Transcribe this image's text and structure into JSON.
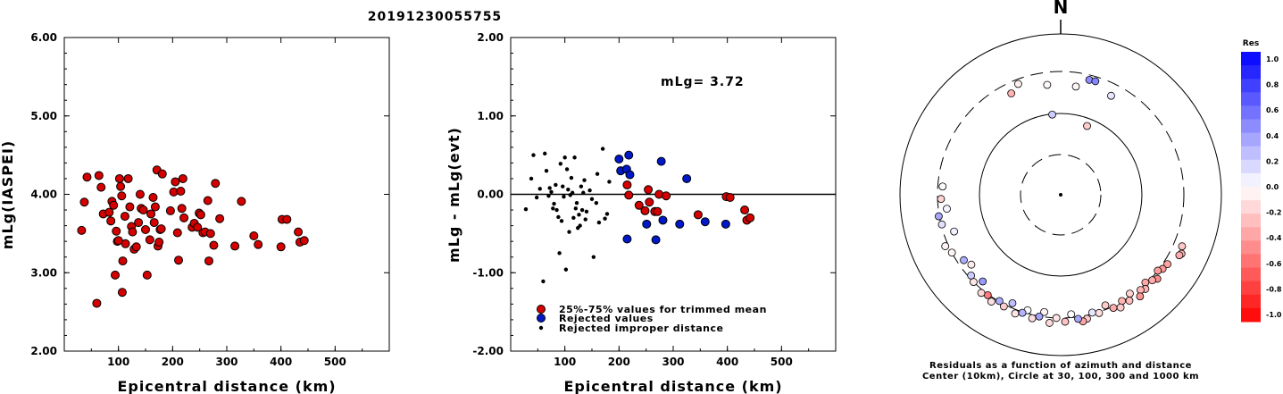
{
  "title": "20191230055755",
  "chart_data": [
    {
      "type": "scatter",
      "ylabel": "mLg(IASPEI)",
      "xlabel": "Epicentral distance (km)",
      "xlim": [
        0,
        600
      ],
      "ylim": [
        2.0,
        6.0
      ],
      "xticks": [
        "100",
        "200",
        "300",
        "400",
        "500"
      ],
      "yticks": [
        "2.00",
        "3.00",
        "4.00",
        "5.00",
        "6.00"
      ],
      "marker_color": "#d40000",
      "points": [
        [
          32,
          3.54
        ],
        [
          37,
          3.9
        ],
        [
          42,
          4.22
        ],
        [
          60,
          2.61
        ],
        [
          64,
          4.24
        ],
        [
          68,
          4.09
        ],
        [
          72,
          3.75
        ],
        [
          83,
          3.77
        ],
        [
          86,
          3.66
        ],
        [
          88,
          3.91
        ],
        [
          91,
          3.86
        ],
        [
          94,
          2.97
        ],
        [
          96,
          3.53
        ],
        [
          98,
          3.4
        ],
        [
          100,
          3.41
        ],
        [
          102,
          4.2
        ],
        [
          104,
          4.1
        ],
        [
          106,
          3.98
        ],
        [
          107,
          2.75
        ],
        [
          108,
          3.15
        ],
        [
          112,
          3.72
        ],
        [
          113,
          3.37
        ],
        [
          118,
          4.2
        ],
        [
          121,
          3.84
        ],
        [
          124,
          3.59
        ],
        [
          126,
          3.52
        ],
        [
          129,
          3.3
        ],
        [
          133,
          3.33
        ],
        [
          137,
          3.64
        ],
        [
          140,
          4.0
        ],
        [
          142,
          3.82
        ],
        [
          146,
          3.8
        ],
        [
          150,
          3.55
        ],
        [
          153,
          2.97
        ],
        [
          158,
          3.42
        ],
        [
          160,
          3.75
        ],
        [
          164,
          3.96
        ],
        [
          166,
          3.64
        ],
        [
          168,
          3.84
        ],
        [
          171,
          4.31
        ],
        [
          173,
          3.34
        ],
        [
          175,
          3.39
        ],
        [
          177,
          3.55
        ],
        [
          179,
          3.56
        ],
        [
          181,
          4.26
        ],
        [
          196,
          3.79
        ],
        [
          202,
          4.03
        ],
        [
          205,
          4.16
        ],
        [
          209,
          3.51
        ],
        [
          211,
          3.16
        ],
        [
          215,
          4.04
        ],
        [
          217,
          3.82
        ],
        [
          219,
          4.2
        ],
        [
          221,
          3.7
        ],
        [
          236,
          3.58
        ],
        [
          240,
          3.63
        ],
        [
          246,
          3.58
        ],
        [
          249,
          3.76
        ],
        [
          252,
          3.74
        ],
        [
          256,
          3.51
        ],
        [
          260,
          3.52
        ],
        [
          265,
          3.92
        ],
        [
          267,
          3.15
        ],
        [
          270,
          3.5
        ],
        [
          276,
          3.35
        ],
        [
          279,
          4.14
        ],
        [
          287,
          3.69
        ],
        [
          315,
          3.34
        ],
        [
          327,
          3.91
        ],
        [
          350,
          3.47
        ],
        [
          358,
          3.36
        ],
        [
          400,
          3.33
        ],
        [
          402,
          3.68
        ],
        [
          411,
          3.68
        ],
        [
          432,
          3.52
        ],
        [
          435,
          3.39
        ],
        [
          443,
          3.41
        ]
      ]
    },
    {
      "type": "scatter",
      "ylabel": "mLg - mLg(evt)",
      "xlabel": "Epicentral distance (km)",
      "xlim": [
        0,
        600
      ],
      "ylim": [
        -2.0,
        2.0
      ],
      "xticks": [
        "100",
        "200",
        "300",
        "400",
        "500"
      ],
      "yticks": [
        "-2.00",
        "-1.00",
        "0.00",
        "1.00",
        "2.00"
      ],
      "annotation": "mLg= 3.72",
      "legend": [
        {
          "label": "25%-75% values for trimmed mean",
          "color": "#d40000"
        },
        {
          "label": "Rejected values",
          "color": "#0018c8"
        },
        {
          "label": "Rejected improper distance",
          "color": "#000000"
        }
      ],
      "series": [
        {
          "name": "25%-75% values for trimmed mean",
          "color": "#d40000",
          "points": [
            [
              215,
              0.12
            ],
            [
              218,
              -0.01
            ],
            [
              237,
              -0.14
            ],
            [
              248,
              -0.21
            ],
            [
              254,
              0.06
            ],
            [
              256,
              -0.1
            ],
            [
              266,
              -0.22
            ],
            [
              271,
              -0.22
            ],
            [
              274,
              0.0
            ],
            [
              287,
              -0.02
            ],
            [
              346,
              -0.26
            ],
            [
              398,
              -0.03
            ],
            [
              405,
              -0.04
            ],
            [
              432,
              -0.2
            ],
            [
              436,
              -0.33
            ],
            [
              442,
              -0.3
            ]
          ]
        },
        {
          "name": "Rejected values",
          "color": "#0018c8",
          "points": [
            [
              200,
              0.45
            ],
            [
              203,
              0.3
            ],
            [
              214,
              0.32
            ],
            [
              218,
              0.5
            ],
            [
              220,
              0.25
            ],
            [
              215,
              -0.57
            ],
            [
              251,
              -0.38
            ],
            [
              268,
              -0.58
            ],
            [
              278,
              0.42
            ],
            [
              281,
              -0.33
            ],
            [
              312,
              -0.38
            ],
            [
              325,
              0.2
            ],
            [
              359,
              -0.35
            ],
            [
              397,
              -0.38
            ]
          ]
        },
        {
          "name": "Rejected improper distance",
          "color": "#000000",
          "points": [
            [
              28,
              -0.19
            ],
            [
              38,
              0.2
            ],
            [
              42,
              0.5
            ],
            [
              48,
              -0.04
            ],
            [
              54,
              0.07
            ],
            [
              60,
              -1.11
            ],
            [
              63,
              0.52
            ],
            [
              66,
              0.3
            ],
            [
              70,
              -0.02
            ],
            [
              72,
              0.08
            ],
            [
              75,
              0.03
            ],
            [
              78,
              -0.18
            ],
            [
              80,
              -0.12
            ],
            [
              83,
              0.12
            ],
            [
              85,
              -0.2
            ],
            [
              88,
              -0.29
            ],
            [
              90,
              -0.75
            ],
            [
              92,
              0.39
            ],
            [
              94,
              -0.34
            ],
            [
              96,
              0.1
            ],
            [
              98,
              -0.03
            ],
            [
              100,
              0.47
            ],
            [
              102,
              -0.96
            ],
            [
              104,
              0.32
            ],
            [
              106,
              0.06
            ],
            [
              108,
              -0.48
            ],
            [
              110,
              -0.01
            ],
            [
              112,
              0.21
            ],
            [
              114,
              0.02
            ],
            [
              116,
              -0.3
            ],
            [
              118,
              0.47
            ],
            [
              120,
              -0.18
            ],
            [
              122,
              -0.11
            ],
            [
              124,
              -0.43
            ],
            [
              126,
              -0.26
            ],
            [
              128,
              -0.4
            ],
            [
              130,
              0.1
            ],
            [
              132,
              -0.2
            ],
            [
              134,
              0.02
            ],
            [
              136,
              0.18
            ],
            [
              138,
              -0.32
            ],
            [
              140,
              -0.22
            ],
            [
              146,
              0.05
            ],
            [
              150,
              -0.06
            ],
            [
              153,
              -0.8
            ],
            [
              158,
              -0.11
            ],
            [
              160,
              0.26
            ],
            [
              163,
              -0.36
            ],
            [
              170,
              0.58
            ],
            [
              174,
              -0.31
            ],
            [
              178,
              -0.25
            ],
            [
              182,
              0.16
            ]
          ]
        }
      ]
    },
    {
      "type": "scatter",
      "subtype": "polar",
      "north_label": "N",
      "caption_line1": "Residuals as a function of azimuth and distance",
      "caption_line2": "Center (10km), Circle at 30, 100, 300 and 1000 km",
      "colorbar": {
        "title": "Res",
        "ticks": [
          "1.0",
          "0.8",
          "0.6",
          "0.4",
          "0.2",
          "0.0",
          "-0.2",
          "-0.4",
          "-0.6",
          "-0.8",
          "-1.0"
        ],
        "positive_color": "#0000ff",
        "negative_color": "#ff0000",
        "zero_color": "#ffffff"
      },
      "points": [
        {
          "az": 353,
          "dist": 216,
          "res": -0.02
        },
        {
          "az": 27,
          "dist": 218,
          "res": 0.1
        },
        {
          "az": 113,
          "dist": 396,
          "res": -0.22
        },
        {
          "az": 116,
          "dist": 430,
          "res": -0.3
        },
        {
          "az": 117,
          "dist": 413,
          "res": -0.33
        },
        {
          "az": 123,
          "dist": 342,
          "res": -0.36
        },
        {
          "az": 126,
          "dist": 328,
          "res": -0.4
        },
        {
          "az": 128,
          "dist": 300,
          "res": -0.38
        },
        {
          "az": 131,
          "dist": 350,
          "res": -0.44
        },
        {
          "az": 133,
          "dist": 320,
          "res": -0.33
        },
        {
          "az": 136,
          "dist": 290,
          "res": -0.35
        },
        {
          "az": 138,
          "dist": 335,
          "res": -0.3
        },
        {
          "az": 140,
          "dist": 310,
          "res": -0.29
        },
        {
          "az": 142,
          "dist": 360,
          "res": -0.42
        },
        {
          "az": 145,
          "dist": 280,
          "res": -0.18
        },
        {
          "az": 147,
          "dist": 330,
          "res": -0.25
        },
        {
          "az": 150,
          "dist": 295,
          "res": -0.3
        },
        {
          "az": 152,
          "dist": 345,
          "res": -0.2
        },
        {
          "az": 155,
          "dist": 315,
          "res": -0.33
        },
        {
          "az": 158,
          "dist": 270,
          "res": -0.2
        },
        {
          "az": 162,
          "dist": 310,
          "res": -0.12
        },
        {
          "az": 165,
          "dist": 290,
          "res": 0.1
        },
        {
          "az": 168,
          "dist": 335,
          "res": -0.21
        },
        {
          "az": 170,
          "dist": 355,
          "res": -0.35
        },
        {
          "az": 172,
          "dist": 320,
          "res": 0.35
        },
        {
          "az": 175,
          "dist": 275,
          "res": 0.0
        },
        {
          "az": 178,
          "dist": 338,
          "res": -0.24
        },
        {
          "az": 182,
          "dist": 300,
          "res": -0.1
        },
        {
          "az": 185,
          "dist": 356,
          "res": -0.15
        },
        {
          "az": 188,
          "dist": 264,
          "res": -0.05
        },
        {
          "az": 190,
          "dist": 303,
          "res": 0.36
        },
        {
          "az": 193,
          "dist": 335,
          "res": -0.13
        },
        {
          "az": 196,
          "dist": 276,
          "res": -0.02
        },
        {
          "az": 198,
          "dist": 308,
          "res": 0.3
        },
        {
          "az": 201,
          "dist": 340,
          "res": -0.1
        },
        {
          "az": 204,
          "dist": 266,
          "res": 0.25
        },
        {
          "az": 207,
          "dist": 320,
          "res": -0.2
        },
        {
          "az": 210,
          "dist": 295,
          "res": 0.32
        },
        {
          "az": 213,
          "dist": 342,
          "res": -0.12
        },
        {
          "az": 216,
          "dist": 308,
          "res": -0.52
        },
        {
          "az": 219,
          "dist": 330,
          "res": -0.15
        },
        {
          "az": 222,
          "dist": 252,
          "res": 0.4
        },
        {
          "az": 225,
          "dist": 300,
          "res": -0.1
        },
        {
          "az": 228,
          "dist": 280,
          "res": 0.2
        },
        {
          "az": 232,
          "dist": 232,
          "res": -0.08
        },
        {
          "az": 236,
          "dist": 254,
          "res": 0.32
        },
        {
          "az": 242,
          "dist": 300,
          "res": -0.04
        },
        {
          "az": 246,
          "dist": 332,
          "res": -0.05
        },
        {
          "az": 251,
          "dist": 228,
          "res": 0.06
        },
        {
          "az": 256,
          "dist": 294,
          "res": 0.12
        },
        {
          "az": 260,
          "dist": 306,
          "res": 0.35
        },
        {
          "az": 263,
          "dist": 240,
          "res": 0.04
        },
        {
          "az": 268,
          "dist": 274,
          "res": -0.18
        },
        {
          "az": 274,
          "dist": 264,
          "res": -0.02
        },
        {
          "az": 334,
          "dist": 228,
          "res": -0.3
        },
        {
          "az": 339,
          "dist": 266,
          "res": -0.06
        },
        {
          "az": 8,
          "dist": 208,
          "res": -0.04
        },
        {
          "az": 14,
          "dist": 264,
          "res": 0.45
        },
        {
          "az": 17,
          "dist": 266,
          "res": 0.48
        },
        {
          "az": 354,
          "dist": 98,
          "res": 0.2
        },
        {
          "az": 21,
          "dist": 80,
          "res": -0.2
        }
      ]
    }
  ]
}
